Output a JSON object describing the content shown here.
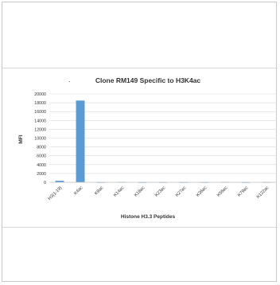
{
  "chart_data": {
    "type": "bar",
    "title": "Clone RM149 Specific to H3K4ac",
    "title_prefix": ".",
    "xlabel": "Histone H3.3 Peptides",
    "ylabel": "MFI",
    "ylim": [
      0,
      20000
    ],
    "yticks": [
      0,
      2000,
      4000,
      6000,
      8000,
      10000,
      12000,
      14000,
      16000,
      18000,
      20000
    ],
    "categories": [
      "H3(1-19)",
      "K4ac",
      "K9ac",
      "K14ac",
      "K18ac",
      "K23ac",
      "K27ac",
      "K36ac",
      "K56ac",
      "K79ac",
      "K122ac"
    ],
    "values": [
      350,
      18500,
      30,
      80,
      30,
      40,
      30,
      30,
      60,
      30,
      50
    ],
    "grid": true,
    "legend": "none",
    "bar_color": "#5b9bd5"
  }
}
